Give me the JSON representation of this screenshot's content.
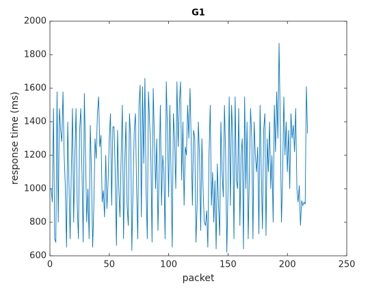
{
  "chart_data": {
    "type": "line",
    "title": "G1",
    "xlabel": "packet",
    "ylabel": "response time (ms)",
    "xlim": [
      0,
      250
    ],
    "xticks": [
      0,
      50,
      100,
      150,
      200,
      250
    ],
    "ylim": [
      600,
      2000
    ],
    "yticks": [
      600,
      800,
      1000,
      1200,
      1400,
      1600,
      1800,
      2000
    ],
    "grid": false,
    "x": [
      1,
      2,
      3,
      4,
      5,
      6,
      7,
      8,
      9,
      10,
      11,
      12,
      13,
      14,
      15,
      16,
      17,
      18,
      19,
      20,
      21,
      22,
      23,
      24,
      25,
      26,
      27,
      28,
      29,
      30,
      31,
      32,
      33,
      34,
      35,
      36,
      37,
      38,
      39,
      40,
      41,
      42,
      43,
      44,
      45,
      46,
      47,
      48,
      49,
      50,
      51,
      52,
      53,
      54,
      55,
      56,
      57,
      58,
      59,
      60,
      61,
      62,
      63,
      64,
      65,
      66,
      67,
      68,
      69,
      70,
      71,
      72,
      73,
      74,
      75,
      76,
      77,
      78,
      79,
      80,
      81,
      82,
      83,
      84,
      85,
      86,
      87,
      88,
      89,
      90,
      91,
      92,
      93,
      94,
      95,
      96,
      97,
      98,
      99,
      100,
      101,
      102,
      103,
      104,
      105,
      106,
      107,
      108,
      109,
      110,
      111,
      112,
      113,
      114,
      115,
      116,
      117,
      118,
      119,
      120,
      121,
      122,
      123,
      124,
      125,
      126,
      127,
      128,
      129,
      130,
      131,
      132,
      133,
      134,
      135,
      136,
      137,
      138,
      139,
      140,
      141,
      142,
      143,
      144,
      145,
      146,
      147,
      148,
      149,
      150,
      151,
      152,
      153,
      154,
      155,
      156,
      157,
      158,
      159,
      160,
      161,
      162,
      163,
      164,
      165,
      166,
      167,
      168,
      169,
      170,
      171,
      172,
      173,
      174,
      175,
      176,
      177,
      178,
      179,
      180,
      181,
      182,
      183,
      184,
      185,
      186,
      187,
      188,
      189,
      190,
      191,
      192,
      193,
      194,
      195,
      196,
      197,
      198,
      199,
      200,
      201,
      202,
      203,
      204,
      205,
      206,
      207,
      208,
      209,
      210,
      211,
      212,
      213,
      214,
      215,
      216,
      217
    ],
    "series": [
      {
        "color": "#0072bd",
        "values": [
          1000,
          920,
          1480,
          700,
          680,
          1580,
          800,
          1480,
          1350,
          1280,
          1580,
          1200,
          1000,
          650,
          1400,
          1050,
          700,
          1100,
          1480,
          800,
          1200,
          1480,
          900,
          700,
          1350,
          1480,
          1100,
          680,
          1570,
          1200,
          800,
          1000,
          700,
          1380,
          1100,
          650,
          900,
          1300,
          1180,
          1450,
          1550,
          1250,
          1320,
          920,
          990,
          830,
          1200,
          880,
          1040,
          1300,
          1450,
          900,
          1370,
          1370,
          1100,
          660,
          1350,
          1000,
          830,
          1200,
          1500,
          700,
          1150,
          1400,
          900,
          780,
          1450,
          1300,
          630,
          1000,
          1340,
          1450,
          1000,
          700,
          1500,
          1620,
          830,
          1610,
          1150,
          1660,
          1000,
          700,
          1580,
          1400,
          1200,
          680,
          1600,
          1300,
          1000,
          1300,
          750,
          1100,
          1500,
          900,
          1200,
          1100,
          700,
          1640,
          1350,
          950,
          1500,
          1100,
          650,
          1450,
          1300,
          1000,
          1640,
          1250,
          1500,
          1640,
          1050,
          1400,
          900,
          1250,
          1200,
          1500,
          1300,
          1600,
          1280,
          900,
          1350,
          1300,
          680,
          900,
          1400,
          1200,
          750,
          1300,
          1000,
          800,
          780,
          870,
          650,
          1200,
          1500,
          900,
          1100,
          800,
          1050,
          640,
          1150,
          900,
          720,
          1400,
          1100,
          950,
          1500,
          1200,
          620,
          1000,
          1550,
          900,
          1500,
          1300,
          700,
          1550,
          1050,
          1000,
          1480,
          780,
          1200,
          1300,
          640,
          1550,
          1000,
          1400,
          700,
          1100,
          1480,
          1300,
          700,
          1400,
          1200,
          1100,
          1250,
          730,
          1500,
          1100,
          760,
          1350,
          1450,
          720,
          1300,
          1100,
          1400,
          1000,
          1200,
          800,
          1500,
          1220,
          1580,
          1300,
          1870,
          1400,
          800,
          1080,
          1550,
          1200,
          1400,
          1100,
          1350,
          1000,
          1450,
          1300,
          1380,
          1220,
          1480,
          1000,
          920,
          1020,
          780,
          930,
          900,
          920,
          910,
          1610,
          1330
        ]
      }
    ]
  }
}
